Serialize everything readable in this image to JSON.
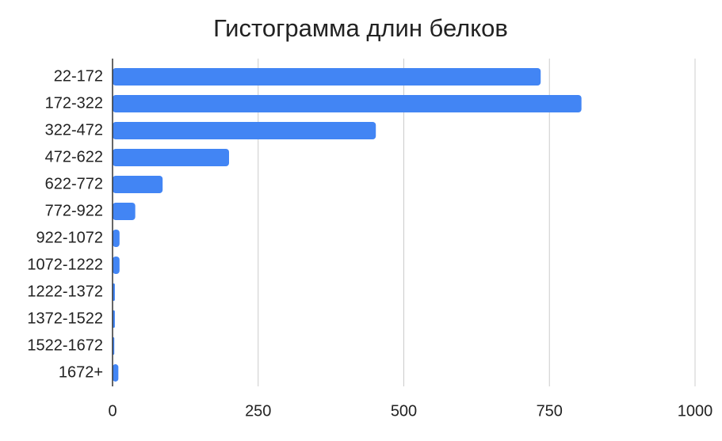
{
  "chart_data": {
    "type": "bar",
    "orientation": "horizontal",
    "title": "Гистограмма длин белков",
    "categories": [
      "22-172",
      "172-322",
      "322-472",
      "472-622",
      "622-772",
      "772-922",
      "922-1072",
      "1072-1222",
      "1222-1372",
      "1372-1522",
      "1522-1672",
      "1672+"
    ],
    "values": [
      735,
      805,
      452,
      200,
      86,
      39,
      12,
      12,
      4,
      4,
      3,
      10
    ],
    "color": "#4285f4",
    "xlim": [
      0,
      1000
    ],
    "xticks": [
      0,
      250,
      500,
      750,
      1000
    ],
    "grid": true
  }
}
